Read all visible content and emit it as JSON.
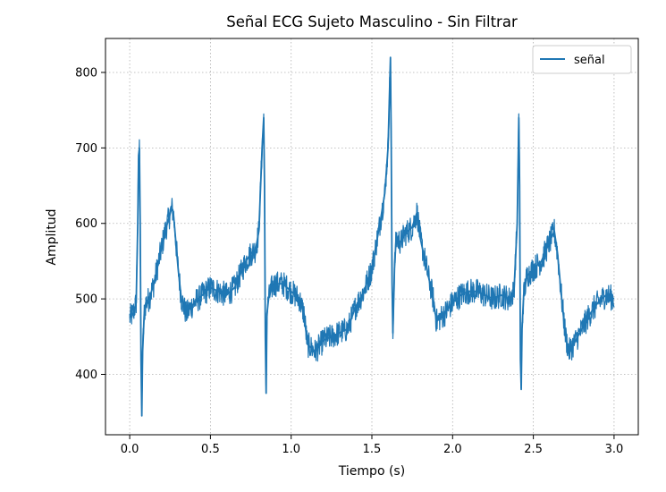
{
  "chart_data": {
    "type": "line",
    "title": "Señal ECG Sujeto Masculino - Sin Filtrar",
    "xlabel": "Tiempo (s)",
    "ylabel": "Amplitud",
    "xlim": [
      -0.15,
      3.15
    ],
    "ylim": [
      320,
      845
    ],
    "xticks": [
      0.0,
      0.5,
      1.0,
      1.5,
      2.0,
      2.5,
      3.0
    ],
    "xtick_labels": [
      "0.0",
      "0.5",
      "1.0",
      "1.5",
      "2.0",
      "2.5",
      "3.0"
    ],
    "yticks": [
      400,
      500,
      600,
      700,
      800
    ],
    "ytick_labels": [
      "400",
      "500",
      "600",
      "700",
      "800"
    ],
    "grid": true,
    "legend_position": "top-right",
    "color": "#1f77b4",
    "series": [
      {
        "name": "señal",
        "x": [
          0.0,
          0.02,
          0.04,
          0.05,
          0.055,
          0.06,
          0.065,
          0.07,
          0.075,
          0.08,
          0.09,
          0.1,
          0.12,
          0.15,
          0.18,
          0.2,
          0.22,
          0.24,
          0.26,
          0.27,
          0.28,
          0.3,
          0.32,
          0.35,
          0.4,
          0.45,
          0.5,
          0.55,
          0.6,
          0.65,
          0.68,
          0.7,
          0.72,
          0.75,
          0.78,
          0.8,
          0.82,
          0.83,
          0.835,
          0.84,
          0.845,
          0.85,
          0.86,
          0.88,
          0.9,
          0.95,
          1.0,
          1.05,
          1.08,
          1.1,
          1.15,
          1.2,
          1.25,
          1.3,
          1.35,
          1.4,
          1.45,
          1.5,
          1.55,
          1.58,
          1.6,
          1.61,
          1.615,
          1.62,
          1.625,
          1.63,
          1.64,
          1.65,
          1.68,
          1.7,
          1.75,
          1.78,
          1.8,
          1.83,
          1.85,
          1.88,
          1.9,
          1.95,
          2.0,
          2.05,
          2.1,
          2.15,
          2.2,
          2.25,
          2.3,
          2.35,
          2.38,
          2.4,
          2.41,
          2.415,
          2.42,
          2.425,
          2.43,
          2.44,
          2.46,
          2.5,
          2.55,
          2.6,
          2.63,
          2.65,
          2.68,
          2.7,
          2.72,
          2.75,
          2.8,
          2.85,
          2.9,
          2.95,
          3.0
        ],
        "y": [
          475,
          480,
          495,
          600,
          690,
          700,
          600,
          420,
          345,
          430,
          480,
          495,
          500,
          520,
          550,
          570,
          590,
          605,
          620,
          615,
          590,
          540,
          500,
          480,
          495,
          505,
          515,
          510,
          505,
          515,
          530,
          540,
          550,
          560,
          565,
          590,
          700,
          740,
          650,
          450,
          375,
          480,
          500,
          515,
          520,
          520,
          510,
          500,
          480,
          440,
          430,
          445,
          450,
          455,
          460,
          490,
          510,
          540,
          600,
          640,
          700,
          780,
          820,
          700,
          520,
          455,
          540,
          580,
          575,
          585,
          595,
          615,
          580,
          550,
          530,
          500,
          470,
          480,
          495,
          505,
          510,
          510,
          505,
          500,
          505,
          500,
          510,
          600,
          740,
          650,
          420,
          380,
          460,
          505,
          530,
          540,
          550,
          575,
          590,
          560,
          490,
          450,
          430,
          440,
          460,
          480,
          495,
          505,
          500
        ]
      }
    ]
  }
}
